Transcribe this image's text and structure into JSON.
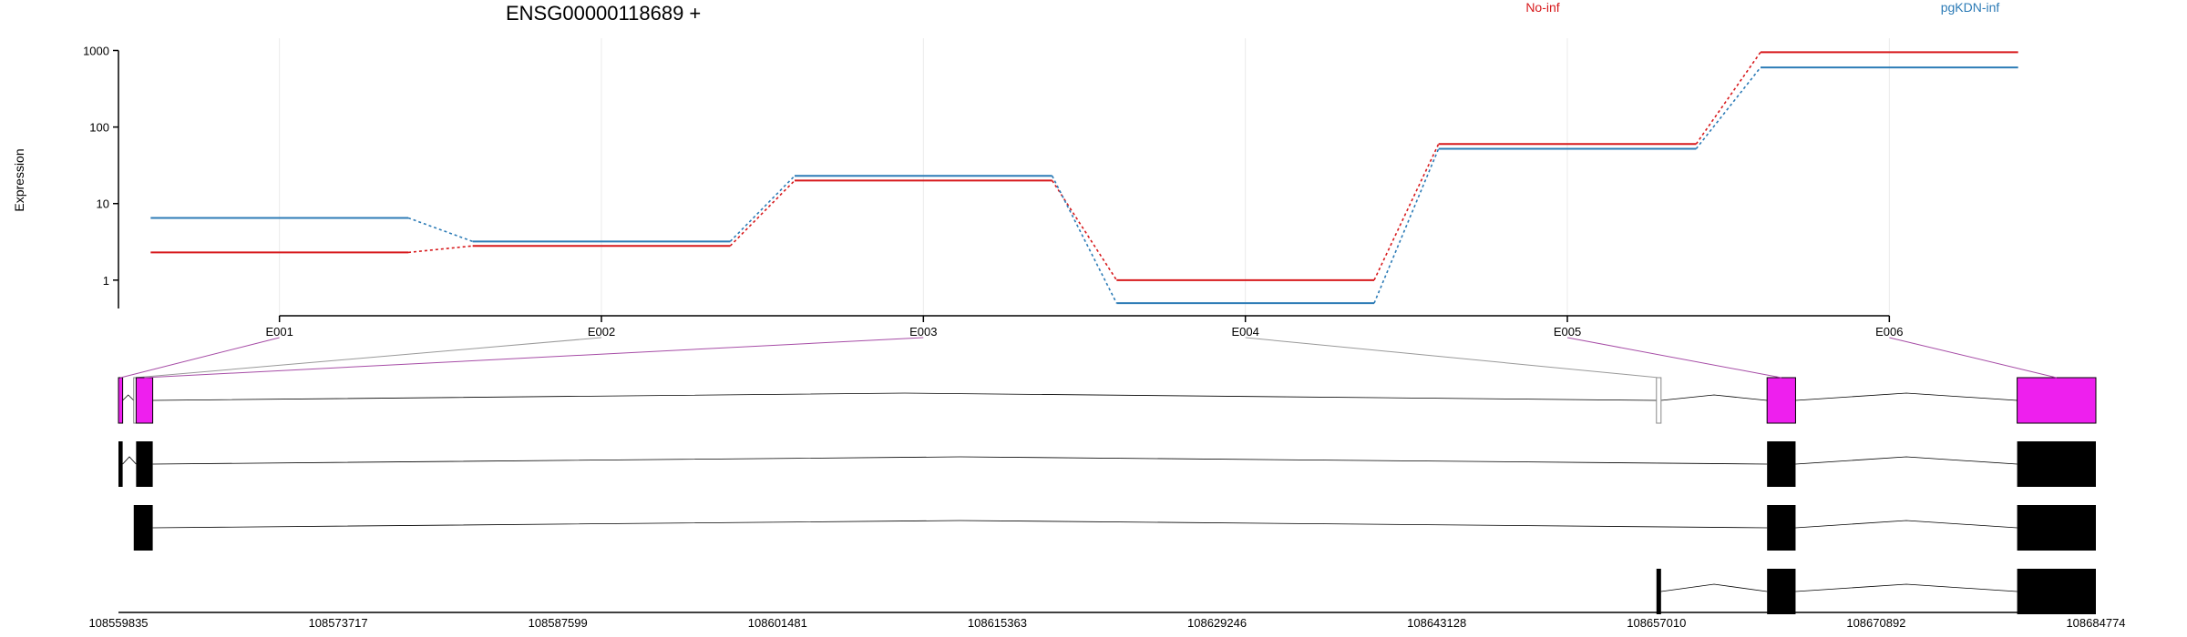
{
  "chart_data": {
    "type": "line",
    "title": "ENSG00000118689 +",
    "ylabel": "Expression",
    "yscale": "log",
    "ylim": [
      0.45,
      1100
    ],
    "yticks": [
      1,
      10,
      100,
      1000
    ],
    "ytick_labels": [
      "1",
      "10",
      "100",
      "1000"
    ],
    "categories": [
      "E001",
      "E002",
      "E003",
      "E004",
      "E005",
      "E006"
    ],
    "series": [
      {
        "name": "No-inf",
        "color": "#d7191c",
        "values": [
          2.3,
          2.8,
          20,
          1.0,
          60,
          950
        ]
      },
      {
        "name": "pgKDN-inf",
        "color": "#2c7bb6",
        "values": [
          6.5,
          3.2,
          23,
          0.5,
          52,
          600
        ]
      }
    ],
    "grid": true,
    "legend_position": "top-right",
    "gene_model": {
      "coordinate_range": [
        108559835,
        108684774
      ],
      "coordinate_ticks": [
        "108559835",
        "108573717",
        "108587599",
        "108601481",
        "108615363",
        "108629246",
        "108643128",
        "108657010",
        "108670892",
        "108684774"
      ],
      "highlight_color": "#ee1fee",
      "exons": [
        {
          "id": "E001",
          "start": 108559835,
          "end": 108560100,
          "highlighted": true
        },
        {
          "id": "E002",
          "start": 108560800,
          "end": 108560950,
          "highlighted": false
        },
        {
          "id": "E003",
          "start": 108560950,
          "end": 108562000,
          "highlighted": true
        },
        {
          "id": "E004",
          "start": 108657010,
          "end": 108657300,
          "highlighted": false
        },
        {
          "id": "E005",
          "start": 108664000,
          "end": 108665800,
          "highlighted": true
        },
        {
          "id": "E006",
          "start": 108679800,
          "end": 108684774,
          "highlighted": true
        }
      ],
      "transcripts": [
        {
          "exons": [
            [
              108559835,
              108560100
            ],
            [
              108560950,
              108562000
            ],
            [
              108664000,
              108665800
            ],
            [
              108679800,
              108684774
            ]
          ]
        },
        {
          "exons": [
            [
              108560800,
              108562000
            ],
            [
              108664000,
              108665800
            ],
            [
              108679800,
              108684774
            ]
          ]
        },
        {
          "exons": [
            [
              108657010,
              108657300
            ],
            [
              108664000,
              108665800
            ],
            [
              108679800,
              108684774
            ]
          ]
        }
      ]
    }
  }
}
